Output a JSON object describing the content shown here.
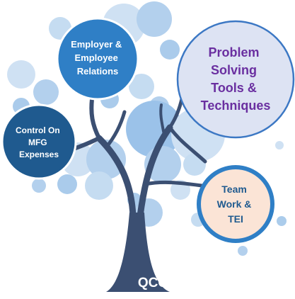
{
  "diagram": {
    "root_label": "QCC",
    "branches": [
      {
        "id": "employer",
        "lines": [
          "Employer &",
          "Employee",
          "Relations"
        ]
      },
      {
        "id": "problem",
        "lines": [
          "Problem",
          "Solving",
          "Tools &",
          "Techniques"
        ]
      },
      {
        "id": "mfg",
        "lines": [
          "Control On",
          "MFG",
          "Expenses"
        ]
      },
      {
        "id": "team",
        "lines": [
          "Team",
          "Work &",
          "TEI"
        ]
      }
    ]
  },
  "colors": {
    "trunk": "#3b4f72",
    "blue_circle": "#2f7fc6",
    "navy_circle": "#1f5a8f",
    "problem_fill": "#dde3f3",
    "problem_ring": "#3c78c4",
    "problem_text": "#6a2fa0",
    "team_fill": "#fbe4d6",
    "team_ring": "#2f7fc6",
    "team_text": "#1f5a8f",
    "bubble_light": "#c7dcf1",
    "bubble_mid": "#a6c8ea"
  }
}
